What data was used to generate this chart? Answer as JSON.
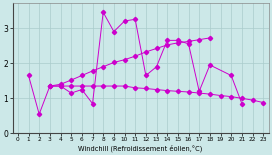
{
  "xlabel": "Windchill (Refroidissement éolien,°C)",
  "bg_color": "#cce8e8",
  "grid_color": "#aacccc",
  "line_color": "#cc00cc",
  "xlim": [
    -0.5,
    23.5
  ],
  "ylim": [
    0,
    3.7
  ],
  "xticks": [
    0,
    1,
    2,
    3,
    4,
    5,
    6,
    7,
    8,
    9,
    10,
    11,
    12,
    13,
    14,
    15,
    16,
    17,
    18,
    19,
    20,
    21,
    22,
    23
  ],
  "yticks": [
    0,
    1,
    2,
    3
  ],
  "sA_x": [
    1,
    2,
    3,
    4,
    5,
    6,
    7,
    8,
    9,
    10,
    11,
    12,
    13,
    14,
    15,
    16,
    17,
    18,
    20,
    21,
    22,
    23
  ],
  "sA_y": [
    1.65,
    0.55,
    1.35,
    1.35,
    1.15,
    1.25,
    0.85,
    3.45,
    2.9,
    3.2,
    3.25,
    1.65,
    1.9,
    2.65,
    2.65,
    2.55,
    1.2,
    1.95,
    1.65,
    0.85,
    null,
    null
  ],
  "sB_x": [
    3,
    4,
    5,
    6,
    7,
    8,
    9,
    10,
    11,
    12,
    13,
    14,
    15,
    16,
    17,
    18,
    19,
    20,
    21,
    22,
    23
  ],
  "sB_y": [
    1.35,
    1.35,
    1.35,
    1.35,
    1.35,
    1.35,
    1.35,
    1.35,
    1.3,
    1.28,
    1.25,
    1.22,
    1.2,
    1.18,
    1.15,
    1.12,
    1.08,
    1.05,
    1.0,
    0.95,
    0.88
  ],
  "sC_x": [
    3,
    4,
    5,
    6,
    7,
    8,
    9,
    10,
    11,
    12,
    13,
    14,
    15,
    16,
    17,
    18
  ],
  "sC_y": [
    1.35,
    1.4,
    1.52,
    1.65,
    1.78,
    1.9,
    2.02,
    2.1,
    2.2,
    2.32,
    2.42,
    2.52,
    2.58,
    2.62,
    2.67,
    2.72
  ]
}
